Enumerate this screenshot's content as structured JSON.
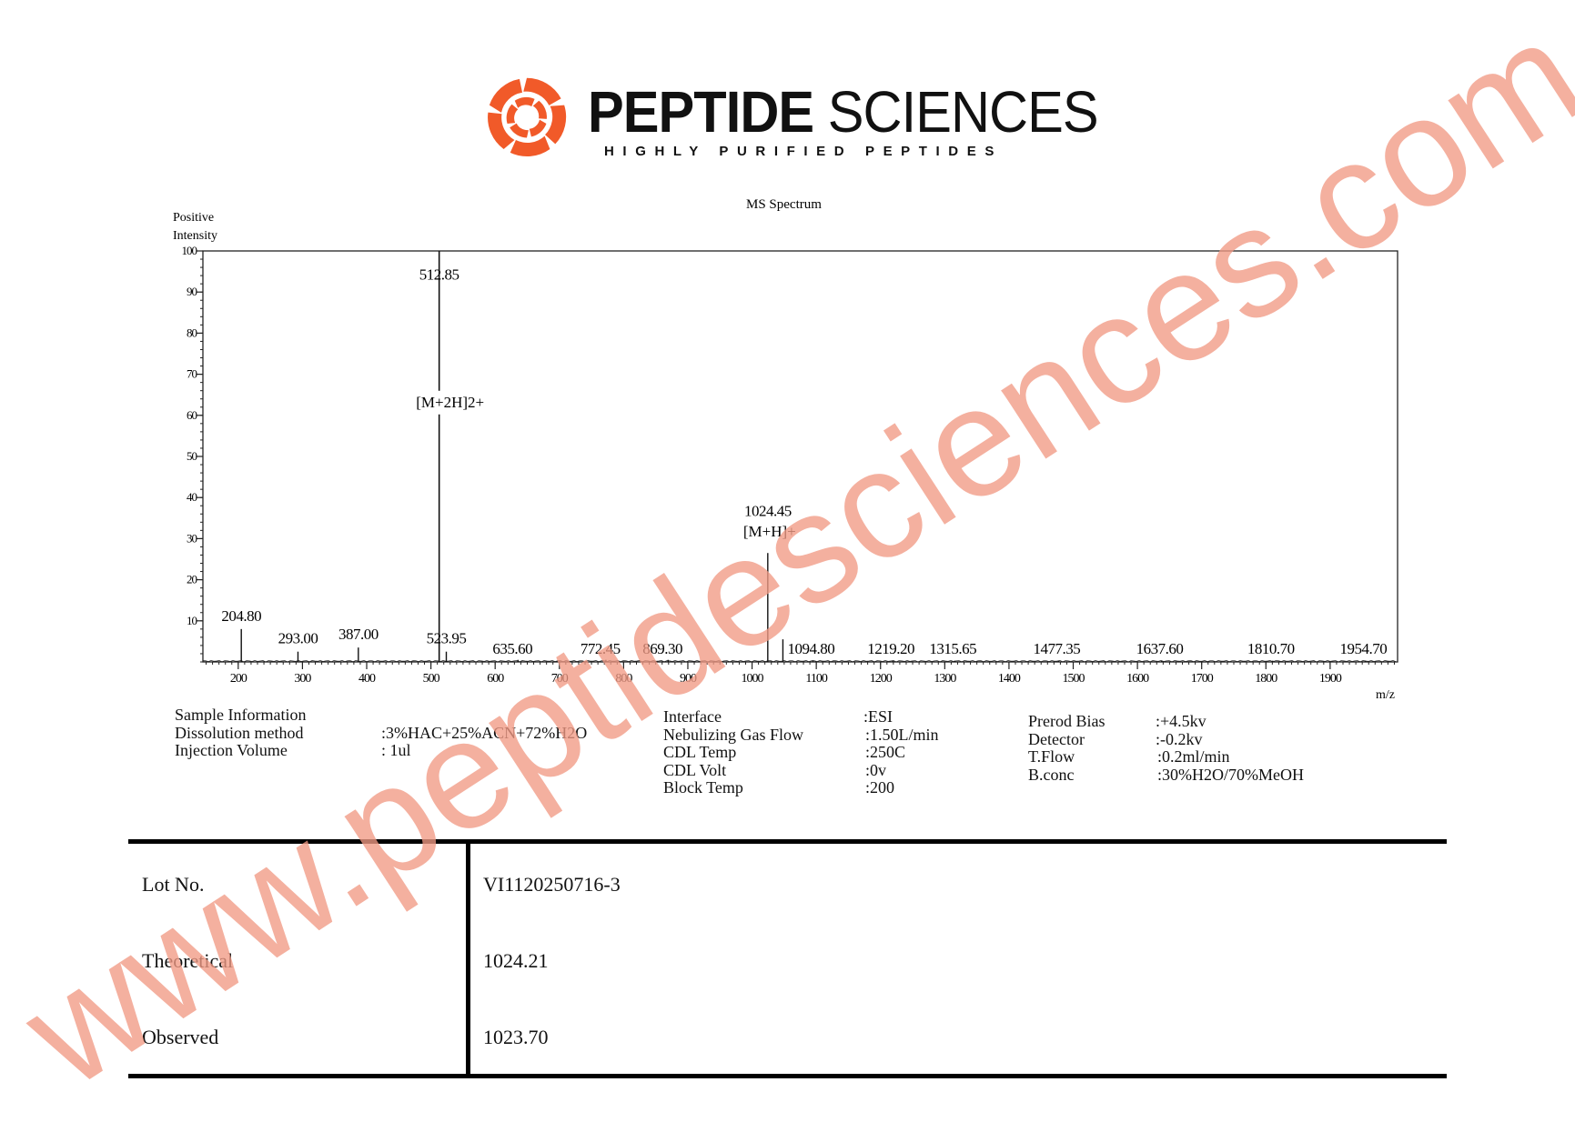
{
  "brand": {
    "name_bold": "PEPTIDE",
    "name_regular": "SCIENCES",
    "tagline": "HIGHLY PURIFIED PEPTIDES",
    "color": "#f15a29"
  },
  "chart_data": {
    "type": "bar",
    "title": "MS Spectrum",
    "ylabel_line1": "Positive",
    "ylabel_line2": "Intensity",
    "xlabel": "m/z",
    "xlim": [
      145,
      2005
    ],
    "ylim": [
      0,
      100
    ],
    "xticks": [
      200,
      300,
      400,
      500,
      600,
      700,
      800,
      900,
      1000,
      1100,
      1200,
      1300,
      1400,
      1500,
      1600,
      1700,
      1800,
      1900
    ],
    "yticks": [
      10,
      20,
      30,
      40,
      50,
      60,
      70,
      80,
      90,
      100
    ],
    "grid": false,
    "peaks": [
      {
        "mz": 204.8,
        "intensity": 8.0,
        "label": "204.80"
      },
      {
        "mz": 293.0,
        "intensity": 2.5,
        "label": "293.00"
      },
      {
        "mz": 387.0,
        "intensity": 3.5,
        "label": "387.00"
      },
      {
        "mz": 512.85,
        "intensity": 100,
        "label": "512.85"
      },
      {
        "mz": 523.95,
        "intensity": 2.5,
        "label": "523.95"
      },
      {
        "mz": 635.6,
        "intensity": 0.5,
        "label": "635.60"
      },
      {
        "mz": 772.45,
        "intensity": 0.5,
        "label": "772.45"
      },
      {
        "mz": 869.3,
        "intensity": 0.5,
        "label": "869.30"
      },
      {
        "mz": 1024.45,
        "intensity": 26.5,
        "label": "1024.45"
      },
      {
        "mz": 1048.0,
        "intensity": 5.5,
        "label": ""
      },
      {
        "mz": 1094.8,
        "intensity": 0.4,
        "label": "1094.80"
      },
      {
        "mz": 1219.2,
        "intensity": 0.3,
        "label": "1219.20"
      },
      {
        "mz": 1315.65,
        "intensity": 0.3,
        "label": "1315.65"
      },
      {
        "mz": 1477.35,
        "intensity": 0.3,
        "label": "1477.35"
      },
      {
        "mz": 1637.6,
        "intensity": 0.3,
        "label": "1637.60"
      },
      {
        "mz": 1810.7,
        "intensity": 0.3,
        "label": "1810.70"
      },
      {
        "mz": 1954.7,
        "intensity": 0.3,
        "label": "1954.70"
      }
    ],
    "annotations": [
      {
        "text": "[M+2H]2+",
        "mz": 512.85,
        "intensity": 62
      },
      {
        "text": "[M+H]+",
        "mz": 1024.45,
        "intensity": 30.5
      }
    ]
  },
  "sample_info": {
    "heading": "Sample Information",
    "rows": [
      {
        "label": "Dissolution method",
        "value": ":3%HAC+25%ACN+72%H2O"
      },
      {
        "label": "Injection Volume",
        "value": ": 1ul"
      }
    ]
  },
  "instrument": [
    {
      "label": "Interface",
      "value": ":ESI"
    },
    {
      "label": "Nebulizing Gas Flow",
      "value": ":1.50L/min"
    },
    {
      "label": "CDL Temp",
      "value": ":250C"
    },
    {
      "label": "CDL Volt",
      "value": ":0v"
    },
    {
      "label": "Block Temp",
      "value": ":200"
    }
  ],
  "detector": [
    {
      "label": "Prerod Bias",
      "value": ":+4.5kv"
    },
    {
      "label": "Detector",
      "value": ":-0.2kv"
    },
    {
      "label": "T.Flow",
      "value": ":0.2ml/min"
    },
    {
      "label": "B.conc",
      "value": ":30%H2O/70%MeOH"
    }
  ],
  "results_table": [
    {
      "label": "Lot No.",
      "value": "VI1120250716-3"
    },
    {
      "label": "Theoretical",
      "value": "1024.21"
    },
    {
      "label": "Observed",
      "value": "1023.70"
    }
  ],
  "watermark": "www.peptidesciences.com"
}
